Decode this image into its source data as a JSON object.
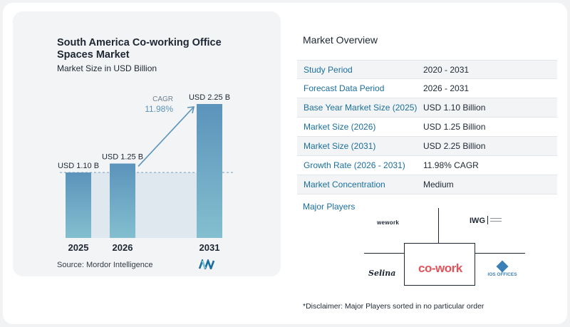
{
  "chart": {
    "title": "South America Co-working Office Spaces Market",
    "subtitle": "Market Size in USD Billion",
    "source": "Source: Mordor Intelligence",
    "cagr_label": "CAGR",
    "cagr_value": "11.98%"
  },
  "chart_data": {
    "type": "bar",
    "title": "South America Co-working Office Spaces Market",
    "subtitle": "Market Size in USD Billion",
    "categories": [
      "2025",
      "2026",
      "2031"
    ],
    "values": [
      1.1,
      1.25,
      2.25
    ],
    "data_labels": [
      "USD 1.10 B",
      "USD 1.25 B",
      "USD 2.25 B"
    ],
    "ylim": [
      0,
      2.25
    ],
    "grid": false,
    "annotation": {
      "label": "CAGR",
      "value": "11.98%"
    },
    "colors": {
      "bar_top": "#5b93bb",
      "bar_bottom": "#83bfcf",
      "baseline_band": "#dfe7ef",
      "arrow": "#5b93bb"
    }
  },
  "overview": {
    "title": "Market Overview",
    "rows": [
      {
        "label": "Study Period",
        "value": "2020 - 2031"
      },
      {
        "label": "Forecast Data Period",
        "value": "2026 - 2031"
      },
      {
        "label": "Base Year Market Size (2025)",
        "value": "USD 1.10 Billion"
      },
      {
        "label": "Market Size (2026)",
        "value": "USD 1.25 Billion"
      },
      {
        "label": "Market Size (2031)",
        "value": "USD 2.25 Billion"
      },
      {
        "label": "Growth Rate (2026 - 2031)",
        "value": "11.98% CAGR"
      },
      {
        "label": "Market Concentration",
        "value": "Medium"
      }
    ]
  },
  "players": {
    "title": "Major Players",
    "logos": [
      "wework",
      "IWG",
      "Selina",
      "co-work",
      "IOS OFFICES"
    ]
  },
  "disclaimer": "*Disclaimer: Major Players sorted in no particular order",
  "colors": {
    "accent": "#1a6f9e",
    "text": "#1d2733"
  }
}
